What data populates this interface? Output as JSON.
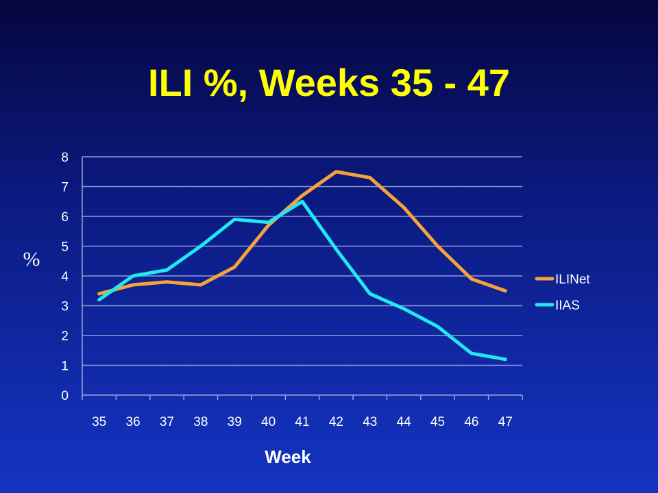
{
  "slide": {
    "title": "ILI %, Weeks 35 - 47"
  },
  "chart_data": {
    "type": "line",
    "xlabel": "Week",
    "ylabel": "%",
    "x": [
      "35",
      "36",
      "37",
      "38",
      "39",
      "40",
      "41",
      "42",
      "43",
      "44",
      "45",
      "46",
      "47"
    ],
    "ylim": [
      0,
      8
    ],
    "yticks": [
      "0",
      "1",
      "2",
      "3",
      "4",
      "5",
      "6",
      "7",
      "8"
    ],
    "grid": true,
    "legend_position": "right",
    "series": [
      {
        "name": "ILINet",
        "color": "#f7a23a",
        "values": [
          3.4,
          3.7,
          3.8,
          3.7,
          4.3,
          5.7,
          6.7,
          7.5,
          7.3,
          6.3,
          5.0,
          3.9,
          3.5
        ]
      },
      {
        "name": "IIAS",
        "color": "#22e8f0",
        "values": [
          3.2,
          4.0,
          4.2,
          5.0,
          5.9,
          5.8,
          6.5,
          4.9,
          3.4,
          2.9,
          2.3,
          1.4,
          1.2
        ]
      }
    ]
  }
}
